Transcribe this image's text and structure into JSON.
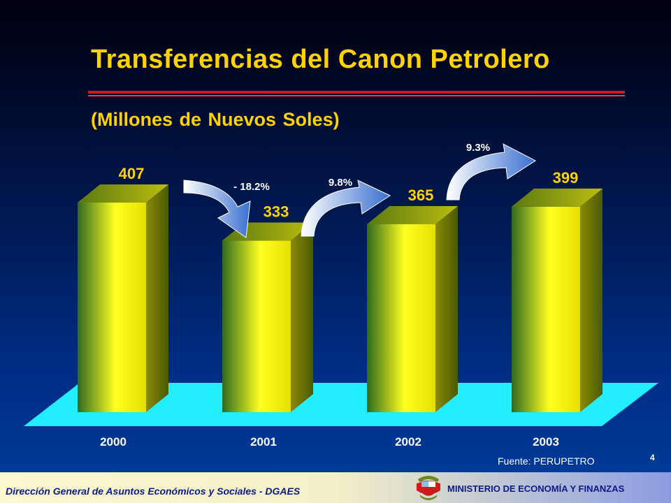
{
  "title": "Transferencias del Canon Petrolero",
  "subtitle": "(Millones de Nuevos Soles)",
  "chart_data": {
    "type": "bar",
    "categories": [
      "2000",
      "2001",
      "2002",
      "2003"
    ],
    "values": [
      407,
      333,
      365,
      399
    ],
    "growth": [
      "- 18.2%",
      "9.8%",
      "9.3%"
    ],
    "title": "Transferencias del Canon Petrolero",
    "subtitle": "(Millones de Nuevos Soles)",
    "xlabel": "",
    "ylabel": "",
    "ylim": [
      0,
      407
    ],
    "grid": false,
    "legend": "none",
    "colors": {
      "bar_front": "#e8e21c",
      "bar_side": "#7a7a08",
      "floor": "#22eeff"
    }
  },
  "source": "Fuente: PERUPETRO",
  "page_number": "4",
  "footer": {
    "left": "Dirección General de Asuntos Económicos y Sociales - DGAES",
    "right": "MINISTERIO DE ECONOMÍA Y FINANZAS"
  }
}
